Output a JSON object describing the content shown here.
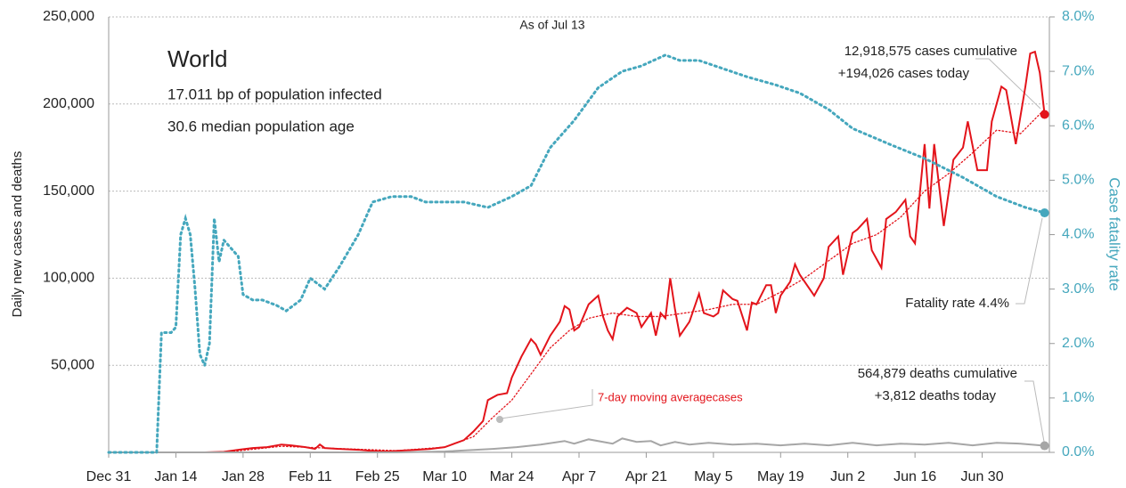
{
  "chart_data": {
    "type": "line",
    "note_top": "As of Jul 13",
    "title": "World",
    "subtitle_lines": [
      "17.011 bp of population infected",
      "30.6 median population age"
    ],
    "ylabel": "Daily new cases and deaths",
    "y2label": "Case fatality rate",
    "annotations": {
      "cases": [
        "12,918,575 cases cumulative",
        "+194,026 cases today"
      ],
      "fatality": "Fatality rate 4.4%",
      "deaths": [
        "564,879 deaths cumulative",
        "+3,812 deaths today"
      ],
      "average": "7-day moving averagecases"
    },
    "xlim": [
      0,
      196
    ],
    "xticks": [
      {
        "value": 0,
        "label": "Dec 31"
      },
      {
        "value": 14,
        "label": "Jan 14"
      },
      {
        "value": 28,
        "label": "Jan 28"
      },
      {
        "value": 42,
        "label": "Feb 11"
      },
      {
        "value": 56,
        "label": "Feb 25"
      },
      {
        "value": 70,
        "label": "Mar 10"
      },
      {
        "value": 84,
        "label": "Mar 24"
      },
      {
        "value": 98,
        "label": "Apr 7"
      },
      {
        "value": 112,
        "label": "Apr 21"
      },
      {
        "value": 126,
        "label": "May 5"
      },
      {
        "value": 140,
        "label": "May 19"
      },
      {
        "value": 154,
        "label": "Jun 2"
      },
      {
        "value": 168,
        "label": "Jun 16"
      },
      {
        "value": 182,
        "label": "Jun 30"
      }
    ],
    "ylim": [
      0,
      250000
    ],
    "yticks": [
      {
        "value": 50000,
        "label": "50,000"
      },
      {
        "value": 100000,
        "label": "100,000"
      },
      {
        "value": 150000,
        "label": "150,000"
      },
      {
        "value": 200000,
        "label": "200,000"
      },
      {
        "value": 250000,
        "label": "250,000"
      }
    ],
    "y2lim": [
      0,
      8
    ],
    "y2ticks": [
      {
        "value": 0,
        "label": "0.0%"
      },
      {
        "value": 1,
        "label": "1.0%"
      },
      {
        "value": 2,
        "label": "2.0%"
      },
      {
        "value": 3,
        "label": "3.0%"
      },
      {
        "value": 4,
        "label": "4.0%"
      },
      {
        "value": 5,
        "label": "5.0%"
      },
      {
        "value": 6,
        "label": "6.0%"
      },
      {
        "value": 7,
        "label": "7.0%"
      },
      {
        "value": 8,
        "label": "8.0%"
      }
    ],
    "grid": true,
    "series": [
      {
        "name": "cases",
        "color": "#e3141b",
        "dash": "solid",
        "end_marker": true,
        "x": [
          0,
          10,
          20,
          24,
          27,
          30,
          33,
          36,
          38,
          41,
          43,
          44,
          45,
          48,
          52,
          55,
          58,
          61,
          64,
          67,
          70,
          72,
          74,
          76,
          78,
          79,
          81,
          83,
          84,
          86,
          88,
          89,
          90,
          92,
          94,
          95,
          96,
          97,
          98,
          100,
          102,
          103,
          104,
          105,
          106,
          108,
          110,
          111,
          113,
          114,
          115,
          116,
          117,
          118,
          119,
          121,
          123,
          124,
          126,
          127,
          128,
          130,
          131,
          133,
          134,
          135,
          137,
          138,
          139,
          140,
          142,
          143,
          144,
          147,
          149,
          150,
          152,
          153,
          155,
          156,
          158,
          159,
          161,
          162,
          164,
          166,
          167,
          168,
          170,
          171,
          172,
          174,
          176,
          178,
          179,
          181,
          183,
          184,
          185,
          186,
          187,
          189,
          191,
          192,
          193,
          194,
          195
        ],
        "values": [
          0,
          0,
          0,
          300,
          1500,
          2500,
          3000,
          4500,
          4000,
          3000,
          2000,
          4500,
          2500,
          2000,
          1500,
          800,
          500,
          1000,
          1500,
          2000,
          3000,
          5000,
          7000,
          12000,
          18000,
          30000,
          33000,
          34000,
          43000,
          55000,
          65000,
          62000,
          56000,
          67000,
          75000,
          84000,
          82000,
          70000,
          72000,
          85000,
          90000,
          78000,
          70000,
          65000,
          78000,
          83000,
          80000,
          72000,
          80000,
          67000,
          80000,
          77000,
          100000,
          82000,
          67000,
          75000,
          91000,
          80000,
          78000,
          80000,
          93000,
          88000,
          87000,
          70000,
          86000,
          85000,
          96000,
          96000,
          80000,
          90000,
          98000,
          108000,
          102000,
          90000,
          100000,
          118000,
          124000,
          102000,
          126000,
          128000,
          134000,
          116000,
          106000,
          134000,
          138000,
          145000,
          124000,
          120000,
          177000,
          140000,
          177000,
          130000,
          168000,
          175000,
          190000,
          162000,
          162000,
          190000,
          200000,
          210000,
          208000,
          177000,
          210000,
          229000,
          230000,
          218000,
          194026
        ]
      },
      {
        "name": "7-day moving average",
        "color": "#e3141b",
        "dash": "dotted",
        "end_marker": false,
        "x": [
          0,
          24,
          36,
          45,
          60,
          70,
          76,
          80,
          84,
          88,
          92,
          96,
          100,
          105,
          110,
          115,
          120,
          125,
          130,
          135,
          140,
          145,
          150,
          155,
          160,
          165,
          170,
          175,
          180,
          185,
          190,
          195
        ],
        "values": [
          0,
          0,
          3500,
          2500,
          1000,
          3000,
          9000,
          20000,
          30000,
          45000,
          60000,
          70000,
          77000,
          80000,
          78000,
          78000,
          80000,
          82000,
          85000,
          85000,
          92000,
          100000,
          110000,
          120000,
          125000,
          135000,
          150000,
          160000,
          172000,
          185000,
          183000,
          197000
        ]
      },
      {
        "name": "deaths",
        "color": "#a6a6a6",
        "dash": "solid",
        "end_marker": true,
        "x": [
          0,
          60,
          70,
          80,
          85,
          90,
          95,
          97,
          100,
          103,
          105,
          107,
          110,
          113,
          115,
          118,
          121,
          125,
          130,
          135,
          140,
          145,
          150,
          155,
          160,
          165,
          170,
          175,
          180,
          185,
          190,
          195
        ],
        "values": [
          0,
          0,
          500,
          2000,
          3000,
          4500,
          6500,
          5000,
          7500,
          6000,
          5000,
          8000,
          6000,
          6500,
          4000,
          6000,
          4500,
          5500,
          4500,
          5000,
          4000,
          5000,
          4000,
          5500,
          4000,
          5000,
          4500,
          5500,
          4000,
          5500,
          5000,
          3812
        ]
      },
      {
        "name": "case fatality rate",
        "color": "#45a7bd",
        "dash": "dotted",
        "end_marker": true,
        "axis": "y2",
        "x": [
          0,
          10,
          11,
          13,
          14,
          15,
          16,
          17,
          18,
          19,
          20,
          21,
          22,
          23,
          24,
          25,
          27,
          28,
          30,
          32,
          35,
          37,
          40,
          42,
          45,
          48,
          52,
          55,
          59,
          63,
          66,
          70,
          74,
          79,
          84,
          88,
          92,
          97,
          102,
          107,
          111,
          116,
          119,
          123,
          128,
          133,
          139,
          144,
          150,
          155,
          163,
          170,
          178,
          185,
          191,
          195
        ],
        "values": [
          0,
          0,
          2.2,
          2.2,
          2.3,
          4.0,
          4.3,
          4.0,
          3.0,
          1.8,
          1.6,
          2.0,
          4.3,
          3.5,
          3.9,
          3.8,
          3.6,
          2.9,
          2.8,
          2.8,
          2.7,
          2.6,
          2.8,
          3.2,
          3.0,
          3.4,
          4.0,
          4.6,
          4.7,
          4.7,
          4.6,
          4.6,
          4.6,
          4.5,
          4.7,
          4.9,
          5.6,
          6.1,
          6.7,
          7.0,
          7.1,
          7.3,
          7.2,
          7.2,
          7.05,
          6.9,
          6.75,
          6.6,
          6.3,
          5.95,
          5.65,
          5.4,
          5.05,
          4.7,
          4.5,
          4.4
        ]
      }
    ]
  }
}
